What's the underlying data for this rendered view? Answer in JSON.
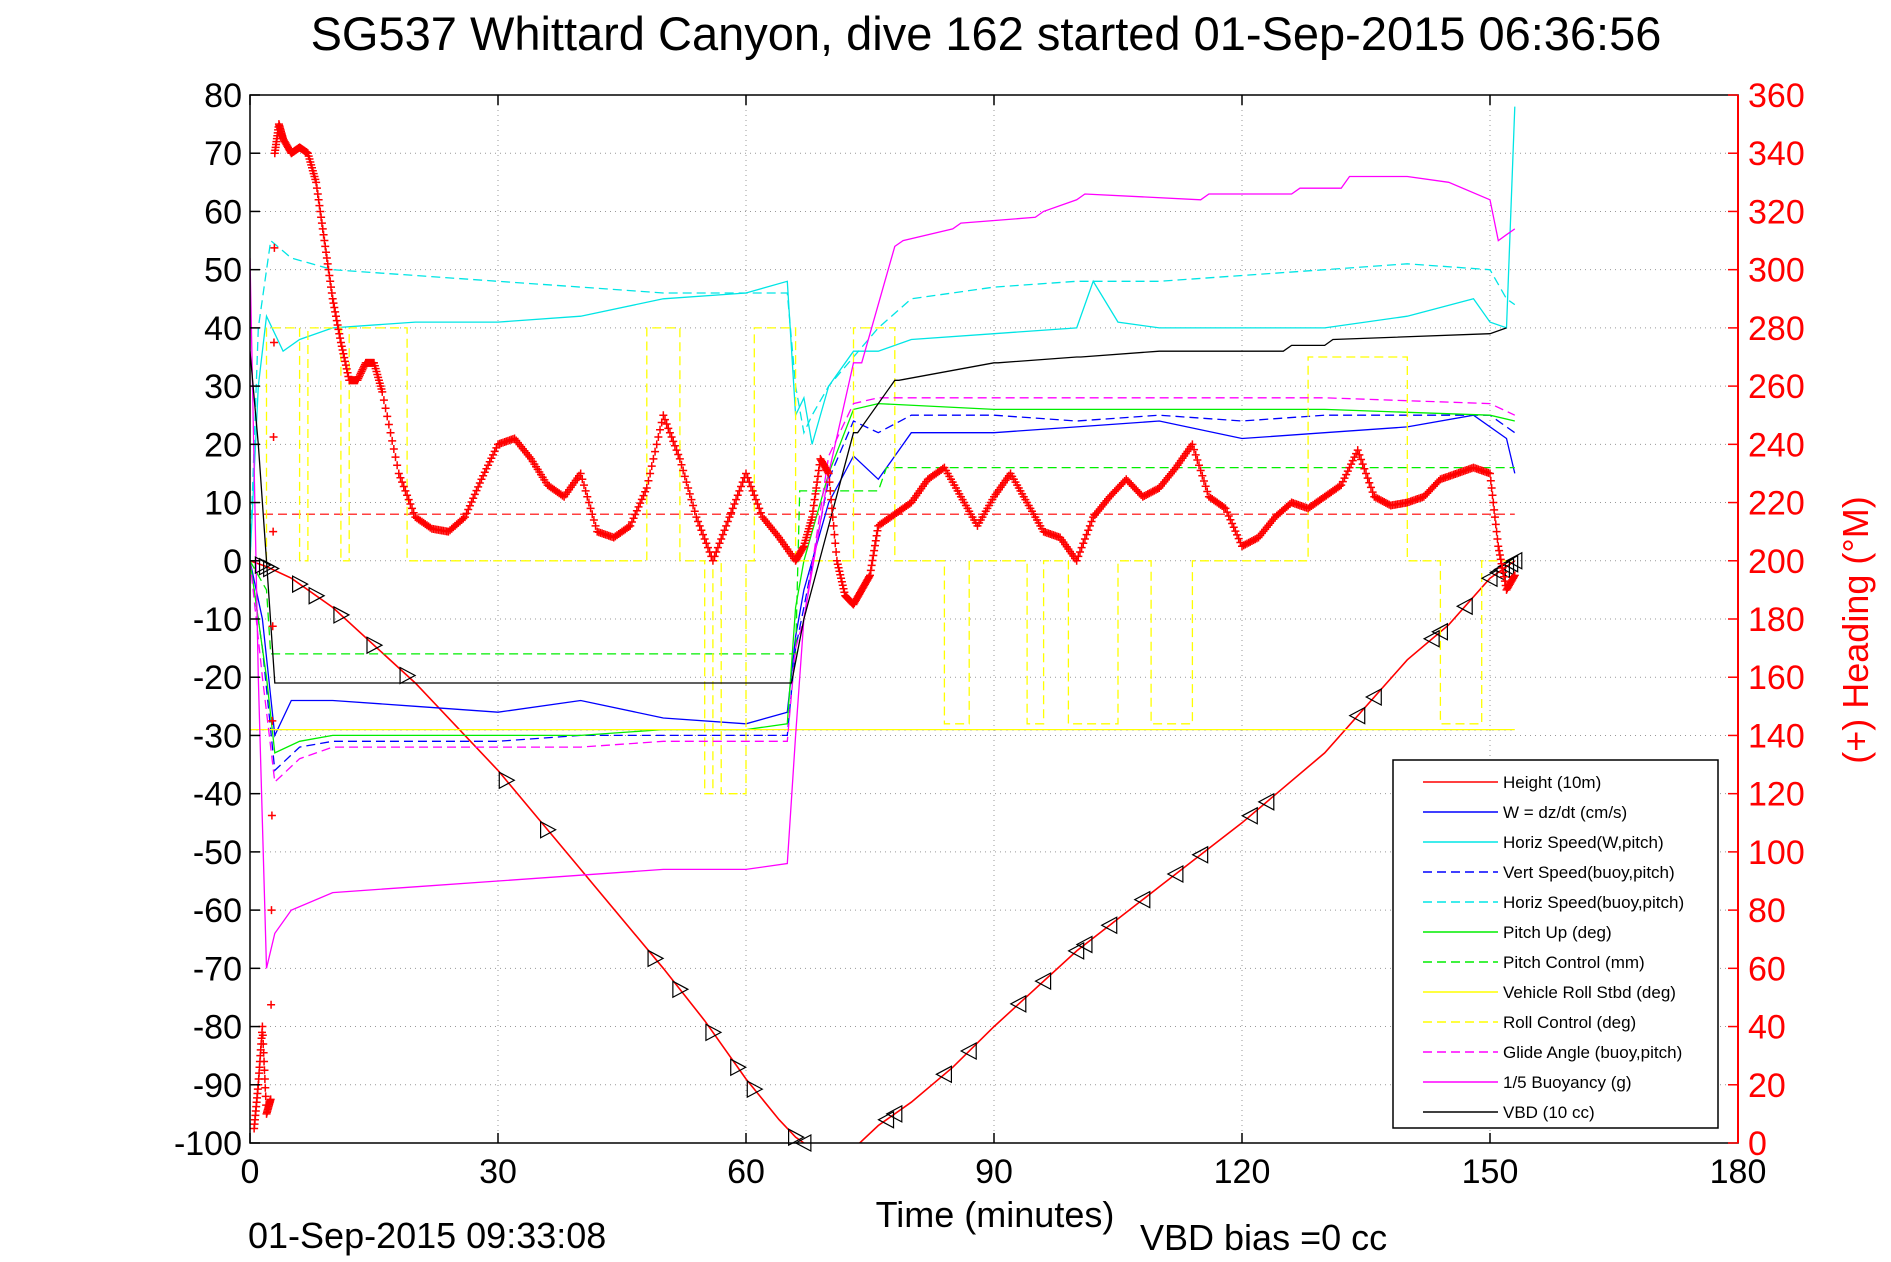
{
  "chart_data": {
    "type": "line",
    "title": "SG537 Whittard Canyon, dive 162 started 01-Sep-2015 06:36:56",
    "xlabel": "Time (minutes)",
    "ylabel_right": "(+) Heading (°M)",
    "footer_left": "01-Sep-2015 09:33:08",
    "footer_right": "VBD bias =0 cc",
    "xlim": [
      0,
      180
    ],
    "ylim_left": [
      -100,
      80
    ],
    "ylim_right": [
      0,
      360
    ],
    "xticks": [
      0,
      30,
      60,
      90,
      120,
      150,
      180
    ],
    "yticks_left": [
      80,
      70,
      60,
      50,
      40,
      30,
      20,
      10,
      0,
      -10,
      -20,
      -30,
      -40,
      -50,
      -60,
      -70,
      -80,
      -90,
      -100
    ],
    "yticks_right": [
      360,
      340,
      320,
      300,
      280,
      260,
      240,
      220,
      200,
      180,
      160,
      140,
      120,
      100,
      80,
      60,
      40,
      20,
      0
    ],
    "grid": true,
    "legend_position": "bottom-right",
    "colors": {
      "height": "#ff0000",
      "w": "#0000ff",
      "horiz": "#00e5e5",
      "vert_buoy": "#0000ff",
      "horiz_buoy": "#00e5e5",
      "pitch": "#00ee00",
      "pitch_ctrl": "#00ee00",
      "roll": "#ffff00",
      "roll_ctrl": "#ffff00",
      "glide": "#ff00ff",
      "buoy": "#ff00ff",
      "vbd": "#000000",
      "heading": "#ff0000"
    },
    "series": [
      {
        "name": "Height (10m)",
        "key": "height",
        "style": "solid",
        "x": [
          0,
          2,
          5,
          10,
          20,
          30,
          40,
          50,
          55,
          60,
          64,
          66,
          67,
          68,
          70,
          73,
          76,
          80,
          85,
          90,
          100,
          110,
          120,
          130,
          140,
          145,
          150,
          152,
          153
        ],
        "y": [
          0,
          -1,
          -3,
          -8,
          -21,
          -36,
          -53,
          -70,
          -79,
          -89,
          -96,
          -99,
          -100,
          -101,
          -103,
          -101,
          -97,
          -93,
          -87,
          -80,
          -67,
          -56,
          -45,
          -33,
          -17,
          -11,
          -3,
          -1,
          0
        ]
      },
      {
        "name": "W = dz/dt (cm/s)",
        "key": "w",
        "style": "solid",
        "x": [
          0,
          1.5,
          3,
          5,
          10,
          20,
          30,
          40,
          50,
          60,
          65,
          66,
          67,
          70,
          73,
          76,
          80,
          90,
          100,
          110,
          120,
          130,
          140,
          148,
          152,
          153
        ],
        "y": [
          0,
          -10,
          -30,
          -24,
          -24,
          -25,
          -26,
          -24,
          -27,
          -28,
          -26,
          -13,
          -5,
          10,
          18,
          14,
          22,
          22,
          23,
          24,
          21,
          22,
          23,
          25,
          21,
          15
        ]
      },
      {
        "name": "Horiz Speed(W,pitch)",
        "key": "horiz",
        "style": "solid",
        "x": [
          0,
          1,
          2,
          4,
          6,
          10,
          20,
          30,
          40,
          50,
          60,
          65,
          66,
          67,
          68,
          70,
          73,
          76,
          80,
          90,
          100,
          102,
          105,
          110,
          120,
          130,
          140,
          148,
          150,
          152,
          153
        ],
        "y": [
          0,
          30,
          42,
          36,
          38,
          40,
          41,
          41,
          42,
          45,
          46,
          48,
          25,
          28,
          20,
          30,
          36,
          36,
          38,
          39,
          40,
          48,
          41,
          40,
          40,
          40,
          42,
          45,
          41,
          40,
          78
        ]
      },
      {
        "name": "Vert Speed(buoy,pitch)",
        "key": "vert_buoy",
        "style": "dashed",
        "x": [
          0,
          1.5,
          3,
          6,
          10,
          20,
          30,
          40,
          50,
          60,
          65,
          66,
          67,
          70,
          73,
          76,
          80,
          90,
          100,
          110,
          120,
          130,
          140,
          150,
          152,
          153
        ],
        "y": [
          0,
          -15,
          -36,
          -32,
          -31,
          -31,
          -31,
          -30,
          -30,
          -30,
          -30,
          -15,
          -8,
          14,
          24,
          22,
          25,
          25,
          24,
          25,
          24,
          25,
          25,
          25,
          23,
          22
        ]
      },
      {
        "name": "Horiz Speed(buoy,pitch)",
        "key": "horiz_buoy",
        "style": "dashed",
        "x": [
          0,
          1,
          2.5,
          5,
          10,
          20,
          30,
          40,
          50,
          60,
          65,
          66,
          67,
          68,
          70,
          73,
          76,
          80,
          90,
          100,
          110,
          120,
          130,
          140,
          150,
          152,
          153
        ],
        "y": [
          0,
          40,
          55,
          52,
          50,
          49,
          48,
          47,
          46,
          46,
          46,
          30,
          22,
          25,
          30,
          35,
          40,
          45,
          47,
          48,
          48,
          49,
          50,
          51,
          50,
          45,
          44
        ]
      },
      {
        "name": "Pitch Up (deg)",
        "key": "pitch",
        "style": "solid",
        "x": [
          0,
          2,
          3,
          6,
          10,
          20,
          30,
          40,
          50,
          60,
          65,
          66,
          67,
          70,
          73,
          76,
          90,
          110,
          130,
          150,
          153
        ],
        "y": [
          0,
          -20,
          -33,
          -31,
          -30,
          -30,
          -30,
          -30,
          -29,
          -29,
          -28,
          -8,
          0,
          15,
          26,
          27,
          26,
          26,
          26,
          25,
          24
        ]
      },
      {
        "name": "Pitch Control (mm)",
        "key": "pitch_ctrl",
        "style": "dashed",
        "x": [
          0,
          2,
          2.5,
          65,
          66,
          66.5,
          76,
          77,
          153
        ],
        "y": [
          0,
          -5,
          -16,
          -16,
          -16,
          12,
          12,
          16,
          16
        ]
      },
      {
        "name": "Vehicle Roll Stbd (deg)",
        "key": "roll",
        "style": "solid",
        "x": [
          0,
          153
        ],
        "y": [
          -29,
          -29
        ]
      },
      {
        "name": "Roll Control (deg)",
        "key": "roll_ctrl",
        "style": "dashed",
        "x": [
          2,
          2,
          6,
          6,
          7,
          7,
          11,
          11,
          12,
          12,
          19,
          19,
          30,
          30,
          48,
          48,
          52,
          52,
          55,
          55,
          56,
          56,
          57,
          57,
          60,
          60,
          61,
          61,
          66,
          66,
          73,
          73,
          78,
          78,
          84,
          84,
          87,
          87,
          94,
          94,
          96,
          96,
          99,
          99,
          105,
          105,
          109,
          109,
          114,
          114,
          116,
          116,
          128,
          128,
          140,
          140,
          144,
          144,
          149,
          149,
          153
        ],
        "y": [
          0,
          40,
          40,
          0,
          0,
          40,
          40,
          0,
          0,
          40,
          40,
          0,
          0,
          0,
          0,
          40,
          40,
          0,
          0,
          -40,
          -40,
          0,
          0,
          -40,
          -40,
          0,
          0,
          40,
          40,
          0,
          0,
          40,
          40,
          0,
          0,
          -28,
          -28,
          0,
          0,
          -28,
          -28,
          0,
          0,
          -28,
          -28,
          0,
          0,
          -28,
          -28,
          0,
          0,
          0,
          0,
          35,
          35,
          0,
          0,
          -28,
          -28,
          0,
          0
        ]
      },
      {
        "name": "Glide Angle (buoy,pitch)",
        "key": "glide",
        "style": "dashed",
        "x": [
          0,
          1.5,
          3,
          6,
          10,
          20,
          30,
          40,
          50,
          60,
          65,
          66,
          67,
          70,
          73,
          76,
          90,
          110,
          130,
          150,
          153
        ],
        "y": [
          0,
          -20,
          -38,
          -34,
          -32,
          -32,
          -32,
          -32,
          -31,
          -31,
          -31,
          -15,
          -10,
          18,
          27,
          28,
          28,
          28,
          28,
          27,
          25
        ]
      },
      {
        "name": "1/5 Buoyancy (g)",
        "key": "buoy",
        "style": "solid",
        "x": [
          0,
          1,
          2,
          3,
          5,
          10,
          20,
          30,
          40,
          50,
          60,
          65,
          66,
          67,
          70,
          73,
          74,
          78,
          79,
          85,
          86,
          95,
          96,
          100,
          101,
          115,
          116,
          126,
          127,
          132,
          133,
          140,
          145,
          150,
          151,
          152,
          153
        ],
        "y": [
          52,
          -20,
          -70,
          -64,
          -60,
          -57,
          -56,
          -55,
          -54,
          -53,
          -53,
          -52,
          -30,
          -10,
          15,
          34,
          34,
          54,
          55,
          57,
          58,
          59,
          60,
          62,
          63,
          62,
          63,
          63,
          64,
          64,
          66,
          66,
          65,
          62,
          55,
          56,
          57
        ]
      },
      {
        "name": "VBD (10 cc)",
        "key": "vbd",
        "style": "solid",
        "x": [
          0,
          1,
          2,
          3,
          65,
          65.5,
          67,
          73,
          73.5,
          78,
          78.5,
          90,
          90.5,
          100,
          100.5,
          110,
          110.5,
          125,
          126,
          130,
          131,
          150,
          152
        ],
        "y": [
          36,
          20,
          0,
          -21,
          -21,
          -21,
          -10,
          22,
          22,
          31,
          31,
          34,
          34,
          35,
          35,
          36,
          36,
          36,
          37,
          37,
          38,
          39,
          40
        ]
      }
    ],
    "reference_lines": [
      {
        "color": "#ff0000",
        "style": "dashed",
        "y": 8
      },
      {
        "color": "#0000ff",
        "style": "dotted",
        "y": -29
      }
    ],
    "heading_series": {
      "label": "(+) Heading (°M)",
      "x": [
        0.5,
        1,
        1.5,
        2,
        2.5,
        3,
        3.5,
        4,
        5,
        6,
        7,
        8,
        9,
        10,
        11,
        12,
        13,
        14,
        15,
        16,
        18,
        20,
        22,
        24,
        26,
        28,
        30,
        32,
        34,
        36,
        38,
        40,
        42,
        44,
        46,
        48,
        50,
        52,
        54,
        56,
        58,
        60,
        62,
        64,
        66,
        67,
        68,
        69,
        70,
        71,
        72,
        73,
        74,
        75,
        76,
        78,
        80,
        82,
        84,
        86,
        88,
        90,
        92,
        94,
        96,
        98,
        100,
        102,
        104,
        106,
        108,
        110,
        112,
        114,
        116,
        118,
        120,
        122,
        124,
        126,
        128,
        130,
        132,
        134,
        136,
        138,
        140,
        142,
        144,
        146,
        148,
        150,
        151,
        152,
        153
      ],
      "y": [
        5,
        20,
        40,
        10,
        15,
        340,
        350,
        345,
        340,
        342,
        340,
        330,
        310,
        290,
        275,
        262,
        262,
        268,
        268,
        258,
        230,
        215,
        211,
        210,
        215,
        228,
        240,
        242,
        235,
        226,
        222,
        230,
        210,
        208,
        212,
        225,
        250,
        235,
        215,
        200,
        215,
        230,
        215,
        208,
        200,
        205,
        215,
        235,
        230,
        200,
        188,
        185,
        190,
        195,
        212,
        216,
        220,
        228,
        232,
        222,
        212,
        222,
        230,
        220,
        210,
        208,
        200,
        215,
        222,
        228,
        222,
        225,
        232,
        240,
        222,
        218,
        205,
        208,
        215,
        220,
        218,
        222,
        226,
        238,
        222,
        219,
        220,
        222,
        228,
        230,
        232,
        230,
        205,
        190,
        195
      ]
    },
    "triangle_markers": {
      "x": [
        1.5,
        2,
        2.5,
        6,
        8,
        11,
        15,
        19,
        31,
        36,
        49,
        52,
        56,
        59,
        61,
        66,
        67,
        77,
        78,
        84,
        87,
        93,
        96,
        100,
        101,
        104,
        108,
        112,
        115,
        121,
        123,
        134,
        136,
        143,
        144,
        147,
        150,
        151,
        151.5,
        152,
        152.5,
        153
      ]
    }
  }
}
